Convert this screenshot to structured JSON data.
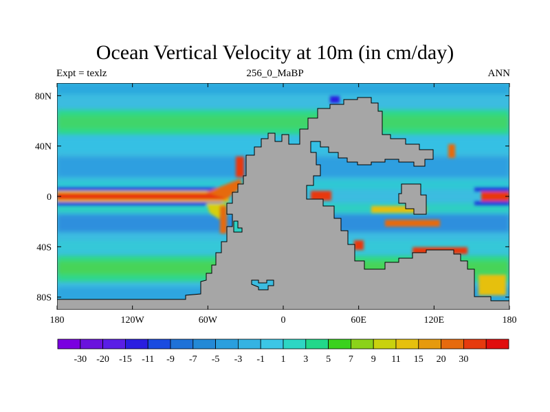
{
  "title": "Ocean Vertical Velocity at 10m (in cm/day)",
  "left_label": "Expt = texlz",
  "center_label": "256_0_MaBP",
  "right_label": "ANN",
  "colors": {
    "land": "#a6a6a6",
    "ocean_base": "#3cbce0",
    "background": "#ffffff"
  },
  "map": {
    "lon_range": [
      -180,
      180
    ],
    "lat_range": [
      -90,
      90
    ],
    "x_ticks": [
      "180",
      "120W",
      "60W",
      "0",
      "60E",
      "120E",
      "180"
    ],
    "y_ticks": [
      "80N",
      "40N",
      "0",
      "40S",
      "80S"
    ]
  },
  "colorbar": {
    "labels": [
      "-30",
      "-20",
      "-15",
      "-11",
      "-9",
      "-7",
      "-5",
      "-3",
      "-1",
      "1",
      "3",
      "5",
      "7",
      "9",
      "11",
      "15",
      "20",
      "30"
    ],
    "colors": [
      "#7a00e0",
      "#6a12dd",
      "#5a1ee6",
      "#2a1ee0",
      "#1a4be0",
      "#1f72d8",
      "#2389d6",
      "#2a9fde",
      "#34b3e3",
      "#3cc6e6",
      "#2ed6c4",
      "#22d88a",
      "#3ad21e",
      "#8bd21a",
      "#c9d20e",
      "#e6c00e",
      "#e69a0e",
      "#e66a0e",
      "#e63a0e",
      "#e00e0e"
    ]
  }
}
